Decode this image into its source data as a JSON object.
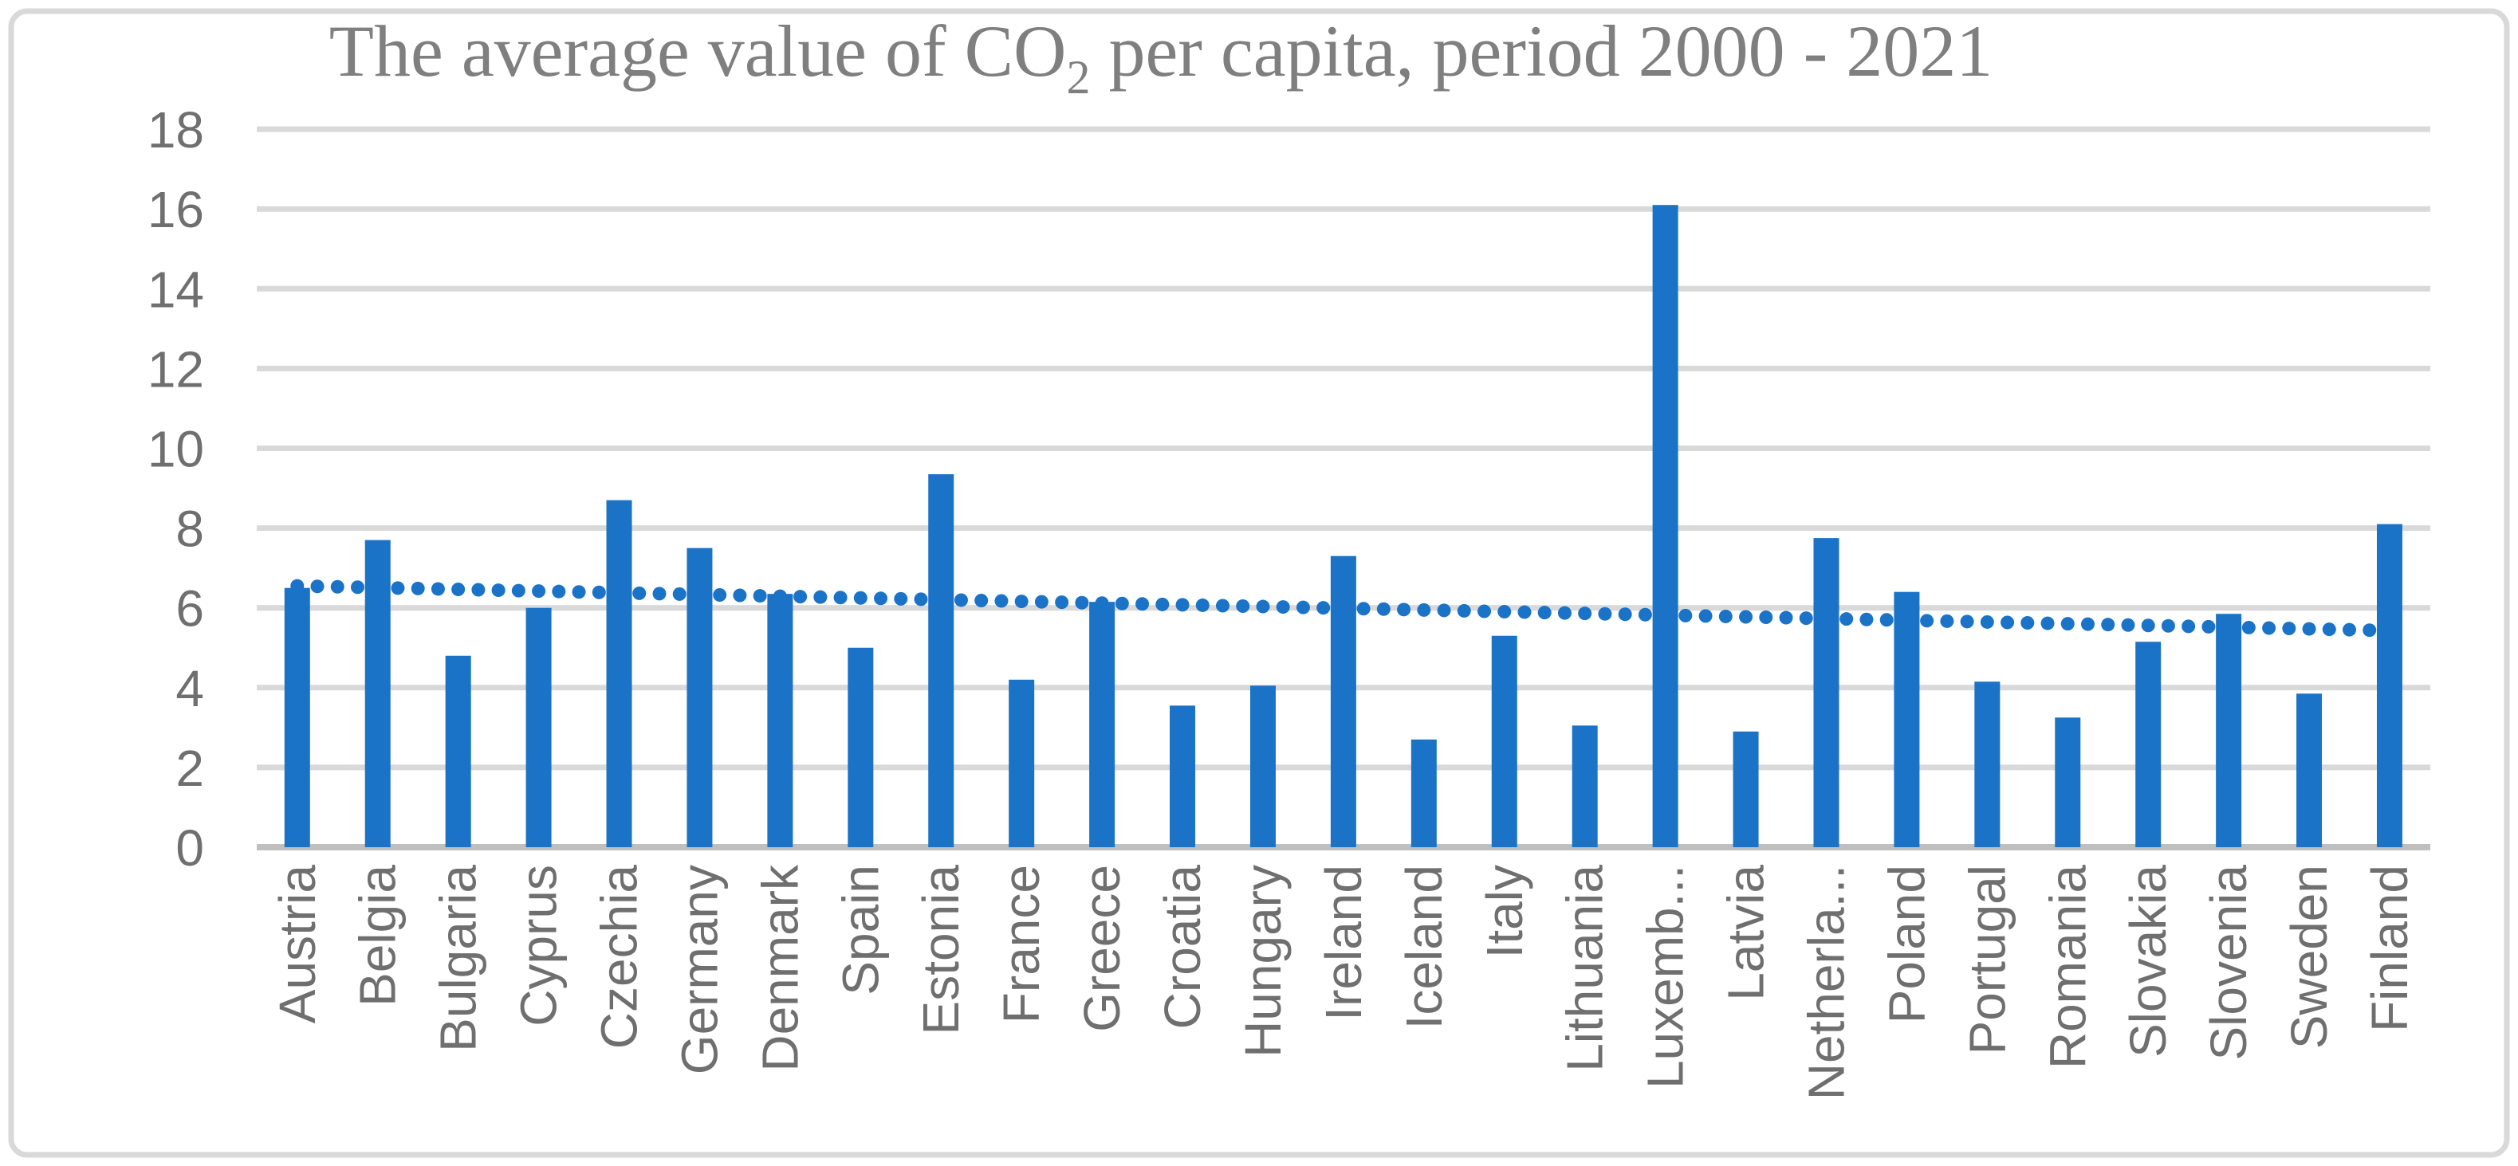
{
  "chart_data": {
    "type": "bar",
    "title": "The average value of CO2 per capita, period 2000 - 2021",
    "title_parts": {
      "prefix": "The average value of CO",
      "subscript": "2",
      "suffix": " per capita, period 2000 - 2021"
    },
    "categories": [
      "Austria",
      "Belgia",
      "Bulgaria",
      "Cyprus",
      "Czechia",
      "Germany",
      "Denmark",
      "Spain",
      "Estonia",
      "France",
      "Greece",
      "Croatia",
      "Hungary",
      "Ireland",
      "Iceland",
      "Italy",
      "Lithuania",
      "Luxemb...",
      "Latvia",
      "Netherla...",
      "Poland",
      "Portugal",
      "Romania",
      "Slovakia",
      "Slovenia",
      "Sweden",
      "Finland"
    ],
    "values": [
      6.5,
      7.7,
      4.8,
      6.0,
      8.7,
      7.5,
      6.35,
      5.0,
      9.35,
      4.2,
      6.15,
      3.55,
      4.05,
      7.3,
      2.7,
      5.3,
      3.05,
      16.1,
      2.9,
      7.75,
      6.4,
      4.15,
      3.25,
      5.15,
      5.85,
      3.85,
      8.1
    ],
    "yticks": [
      "0",
      "2",
      "4",
      "6",
      "8",
      "10",
      "12",
      "14",
      "16",
      "18"
    ],
    "ylim": [
      0,
      18
    ],
    "ytick_step": 2,
    "xlabel": "",
    "ylabel": "",
    "legend": "none",
    "grid": true,
    "trendline": {
      "style": "dotted",
      "start_value": 6.55,
      "end_value": 5.43
    },
    "colors": {
      "bar": "#1B73C8",
      "trend": "#1B73C8",
      "gridline": "#D9D9D9",
      "axis_line": "#BFBFBF",
      "tick_text": "#6F6F6F",
      "title_text": "#7F7F7F",
      "frame_border": "#D9D9D9",
      "background": "#FFFFFF"
    }
  }
}
